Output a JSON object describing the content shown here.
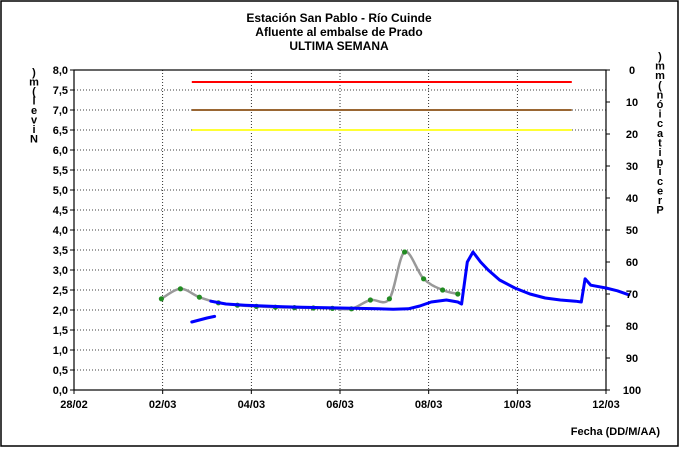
{
  "chart_data": {
    "type": "line",
    "title_lines": [
      "Estación San Pablo - Río Cuinde",
      "Afluente al embalse de Prado",
      "ULTIMA SEMANA"
    ],
    "xlabel": "Fecha (DD/M/AA)",
    "ylabel_left": "Nivel (m)",
    "ylabel_right": "Precipitación (mm)",
    "x_ticks": [
      "28/02",
      "02/03",
      "04/03",
      "06/03",
      "08/03",
      "10/03",
      "12/03"
    ],
    "x_range_days": [
      0,
      14
    ],
    "y_left_ticks": [
      "0,0",
      "0,5",
      "1,0",
      "1,5",
      "2,0",
      "2,5",
      "3,0",
      "3,5",
      "4,0",
      "4,5",
      "5,0",
      "5,5",
      "6,0",
      "6,5",
      "7,0",
      "7,5",
      "8,0"
    ],
    "y_left_range": [
      0,
      8
    ],
    "y_right_ticks": [
      "0",
      "10",
      "20",
      "30",
      "40",
      "50",
      "60",
      "70",
      "80",
      "90",
      "100"
    ],
    "y_right_range": [
      0,
      100
    ],
    "y_right_inverted": true,
    "grid": true,
    "thresholds": [
      {
        "color": "#ff0000",
        "value": 7.7,
        "x_from": 3.1,
        "x_to": 13.1
      },
      {
        "color": "#996633",
        "value": 7.0,
        "x_from": 3.1,
        "x_to": 13.1
      },
      {
        "color": "#ffff33",
        "value": 6.5,
        "x_from": 3.1,
        "x_to": 13.1
      }
    ],
    "series": [
      {
        "style": "thick-line",
        "color": "#0000ff",
        "segments": [
          [
            [
              3.1,
              1.7
            ],
            [
              3.3,
              1.75
            ],
            [
              3.5,
              1.8
            ],
            [
              3.7,
              1.84
            ]
          ],
          [
            [
              3.6,
              2.22
            ],
            [
              4.0,
              2.15
            ],
            [
              4.5,
              2.12
            ],
            [
              5.0,
              2.1
            ],
            [
              5.5,
              2.08
            ],
            [
              6.0,
              2.07
            ],
            [
              6.5,
              2.06
            ],
            [
              7.0,
              2.05
            ],
            [
              7.5,
              2.04
            ],
            [
              8.0,
              2.03
            ],
            [
              8.4,
              2.02
            ],
            [
              8.8,
              2.03
            ],
            [
              9.1,
              2.1
            ],
            [
              9.4,
              2.2
            ],
            [
              9.8,
              2.25
            ],
            [
              10.1,
              2.2
            ],
            [
              10.2,
              2.15
            ],
            [
              10.35,
              3.2
            ],
            [
              10.5,
              3.45
            ],
            [
              10.7,
              3.2
            ],
            [
              10.9,
              3.0
            ],
            [
              11.2,
              2.75
            ],
            [
              11.6,
              2.55
            ],
            [
              12.0,
              2.4
            ],
            [
              12.4,
              2.3
            ],
            [
              12.8,
              2.25
            ],
            [
              13.2,
              2.22
            ],
            [
              13.35,
              2.2
            ],
            [
              13.45,
              2.78
            ],
            [
              13.6,
              2.62
            ],
            [
              14.0,
              2.55
            ],
            [
              14.3,
              2.48
            ],
            [
              14.6,
              2.38
            ]
          ]
        ]
      },
      {
        "style": "smooth-line-dots",
        "color": "#999999",
        "dot_color": "#228b22",
        "points": [
          [
            2.3,
            2.28
          ],
          [
            2.8,
            2.53
          ],
          [
            3.3,
            2.32
          ],
          [
            3.8,
            2.18
          ],
          [
            4.3,
            2.12
          ],
          [
            4.8,
            2.09
          ],
          [
            5.3,
            2.07
          ],
          [
            5.8,
            2.06
          ],
          [
            6.3,
            2.05
          ],
          [
            6.8,
            2.04
          ],
          [
            7.3,
            2.03
          ],
          [
            7.8,
            2.25
          ],
          [
            8.3,
            2.28
          ],
          [
            8.7,
            3.45
          ],
          [
            9.2,
            2.78
          ],
          [
            9.7,
            2.5
          ],
          [
            10.1,
            2.4
          ]
        ]
      }
    ]
  }
}
